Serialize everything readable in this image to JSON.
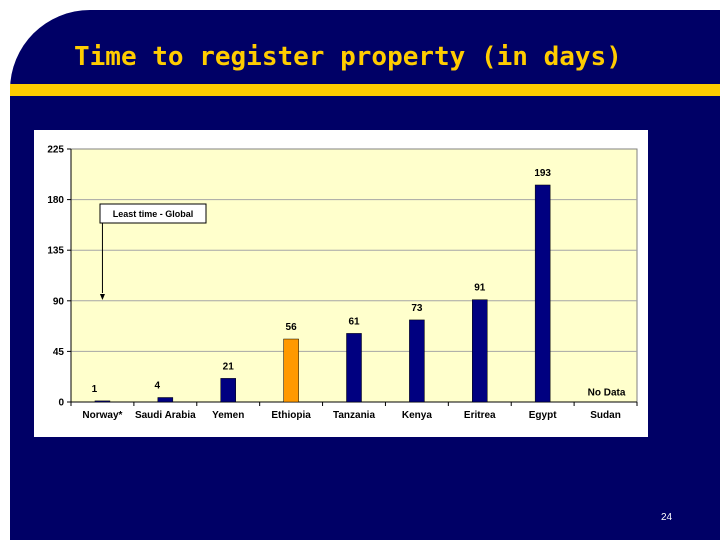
{
  "slide": {
    "title": "Time to register property (in days)",
    "page_number": "24"
  },
  "colors": {
    "background": "#000066",
    "accent": "#ffcc00",
    "plot_area": "#ffffcc",
    "bar_default": "#000080",
    "bar_highlight": "#ff9900"
  },
  "chart_data": {
    "type": "bar",
    "categories": [
      "Norway*",
      "Saudi Arabia",
      "Yemen",
      "Ethiopia",
      "Tanzania",
      "Kenya",
      "Eritrea",
      "Egypt",
      "Sudan"
    ],
    "values": [
      1,
      4,
      21,
      56,
      61,
      73,
      91,
      193,
      null
    ],
    "data_labels": [
      "1",
      "4",
      "21",
      "56",
      "61",
      "73",
      "91",
      "193",
      "No Data"
    ],
    "highlight_category": "Ethiopia",
    "ylim": [
      0,
      225
    ],
    "yticks": [
      0,
      45,
      90,
      135,
      180,
      225
    ],
    "grid": true,
    "legend": "none",
    "annotations": [
      {
        "text": "Least time - Global",
        "target_category": "Norway*"
      }
    ]
  }
}
